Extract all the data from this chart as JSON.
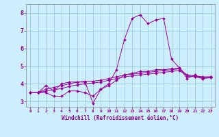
{
  "xlabel": "Windchill (Refroidissement éolien,°C)",
  "bg_color": "#cceeff",
  "line_color": "#990099",
  "grid_color": "#99cccc",
  "x_ticks": [
    0,
    1,
    2,
    3,
    4,
    5,
    6,
    7,
    8,
    9,
    10,
    11,
    12,
    13,
    14,
    15,
    16,
    17,
    18,
    19,
    20,
    21,
    22,
    23
  ],
  "y_ticks": [
    3,
    4,
    5,
    6,
    7,
    8
  ],
  "xlim": [
    -0.5,
    23.5
  ],
  "ylim": [
    2.7,
    8.5
  ],
  "series": [
    [
      3.5,
      3.5,
      3.9,
      3.6,
      4.0,
      4.1,
      4.1,
      4.1,
      2.9,
      3.7,
      4.0,
      4.8,
      6.5,
      7.7,
      7.9,
      7.4,
      7.6,
      7.7,
      5.4,
      4.9,
      4.3,
      4.5,
      4.3,
      4.4
    ],
    [
      3.5,
      3.5,
      3.5,
      3.3,
      3.3,
      3.6,
      3.6,
      3.5,
      3.3,
      3.7,
      3.9,
      4.2,
      4.5,
      4.6,
      4.7,
      4.7,
      4.8,
      4.8,
      4.85,
      4.9,
      4.45,
      4.4,
      4.3,
      4.35
    ],
    [
      3.5,
      3.5,
      3.6,
      3.65,
      3.75,
      3.85,
      3.95,
      4.0,
      4.05,
      4.1,
      4.2,
      4.3,
      4.4,
      4.45,
      4.5,
      4.55,
      4.6,
      4.65,
      4.7,
      4.75,
      4.45,
      4.4,
      4.35,
      4.35
    ],
    [
      3.5,
      3.5,
      3.7,
      3.8,
      3.9,
      4.0,
      4.1,
      4.15,
      4.15,
      4.2,
      4.3,
      4.4,
      4.5,
      4.55,
      4.6,
      4.65,
      4.7,
      4.75,
      4.8,
      4.85,
      4.5,
      4.45,
      4.4,
      4.4
    ]
  ]
}
